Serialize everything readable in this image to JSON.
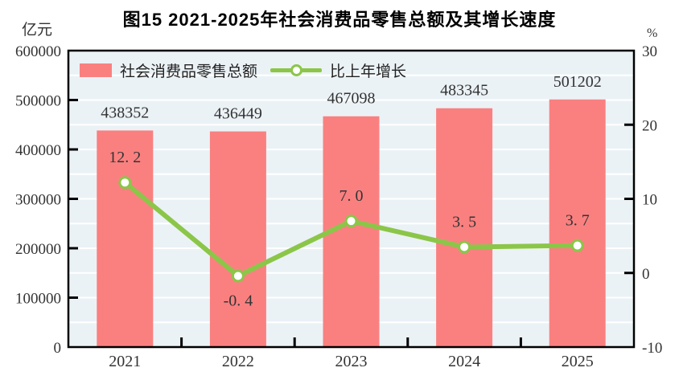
{
  "header": {
    "title": "图15  2021-2025年社会消费品零售总额及其增长速度"
  },
  "axes": {
    "left_unit": "亿元",
    "right_unit": "%"
  },
  "legend": {
    "bar_label": "社会消费品零售总额",
    "line_label": "比上年增长"
  },
  "colors": {
    "bar": "#fa8080",
    "line": "#8bc649",
    "marker_fill": "#ffffff",
    "plot_bg": "#ebf2f6",
    "grid": "#ffffff",
    "frame": "#000000",
    "tick_text": "#333333",
    "value_text": "#333333"
  },
  "chart_data": {
    "type": "bar",
    "title": "图15  2021-2025年社会消费品零售总额及其增长速度",
    "categories": [
      "2021",
      "2022",
      "2023",
      "2024",
      "2025"
    ],
    "series": [
      {
        "name": "社会消费品零售总额",
        "type": "bar",
        "axis": "left",
        "unit": "亿元",
        "values": [
          438352,
          436449,
          467098,
          483345,
          501202
        ],
        "labels": [
          "438352",
          "436449",
          "467098",
          "483345",
          "501202"
        ],
        "color": "#fa8080"
      },
      {
        "name": "比上年增长",
        "type": "line",
        "axis": "right",
        "unit": "%",
        "values": [
          12.2,
          -0.4,
          7.0,
          3.5,
          3.7
        ],
        "labels": [
          "12. 2",
          "-0. 4",
          "7. 0",
          "3. 5",
          "3. 7"
        ],
        "color": "#8bc649"
      }
    ],
    "left_axis": {
      "label": "亿元",
      "min": 0,
      "max": 600000,
      "tick_step": 100000,
      "grid_step": 50000,
      "tick_labels": [
        "0",
        "100000",
        "200000",
        "300000",
        "400000",
        "500000",
        "600000"
      ]
    },
    "right_axis": {
      "label": "%",
      "min": -10,
      "max": 30,
      "tick_step": 10,
      "tick_labels": [
        "-10",
        "0",
        "10",
        "20",
        "30"
      ]
    },
    "grid": true,
    "legend_position": "top-left-inside",
    "plot_bg": "#ebf2f6"
  }
}
